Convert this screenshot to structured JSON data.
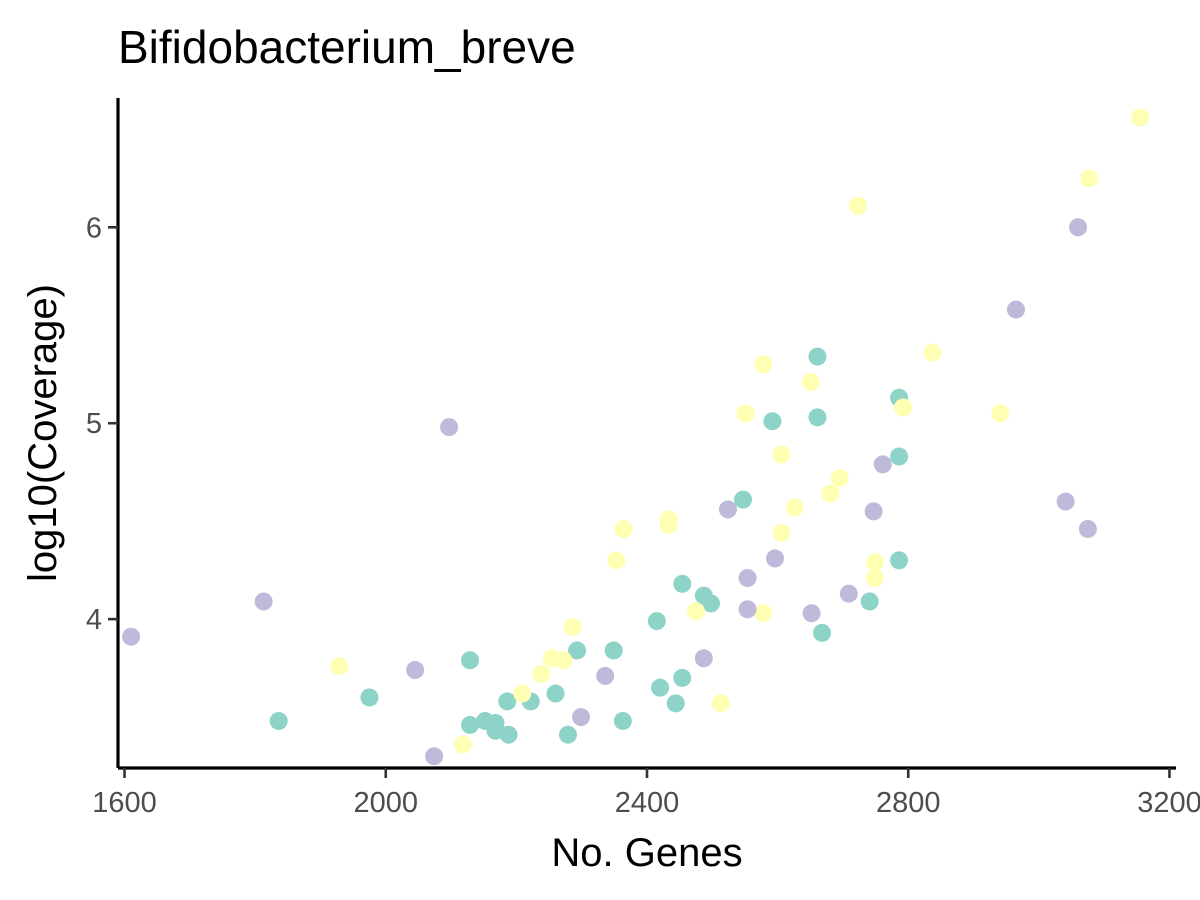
{
  "chart_data": {
    "type": "scatter",
    "title": "Bifidobacterium_breve",
    "xlabel": "No. Genes",
    "ylabel": "log10(Coverage)",
    "xlim": [
      1590,
      3210
    ],
    "ylim": [
      3.24,
      6.66
    ],
    "x_ticks": [
      1600,
      2000,
      2400,
      2800,
      3200
    ],
    "y_ticks": [
      4,
      5,
      6
    ],
    "grid": false,
    "legend": "none",
    "colors": {
      "teal": "#8dd3c7",
      "yellow": "#ffffb3",
      "purple": "#bebada"
    },
    "series": [
      {
        "color": "#8dd3c7",
        "points": [
          [
            1836,
            3.48
          ],
          [
            1975,
            3.6
          ],
          [
            2129,
            3.46
          ],
          [
            2129,
            3.79
          ],
          [
            2152,
            3.48
          ],
          [
            2168,
            3.43
          ],
          [
            2168,
            3.47
          ],
          [
            2186,
            3.58
          ],
          [
            2188,
            3.41
          ],
          [
            2222,
            3.58
          ],
          [
            2260,
            3.62
          ],
          [
            2279,
            3.41
          ],
          [
            2293,
            3.84
          ],
          [
            2349,
            3.84
          ],
          [
            2363,
            3.48
          ],
          [
            2415,
            3.99
          ],
          [
            2420,
            3.65
          ],
          [
            2444,
            3.57
          ],
          [
            2454,
            3.7
          ],
          [
            2454,
            4.18
          ],
          [
            2487,
            4.12
          ],
          [
            2498,
            4.08
          ],
          [
            2547,
            4.61
          ],
          [
            2592,
            5.01
          ],
          [
            2661,
            5.34
          ],
          [
            2661,
            5.03
          ],
          [
            2668,
            3.93
          ],
          [
            2741,
            4.09
          ],
          [
            2786,
            5.13
          ],
          [
            2786,
            4.83
          ],
          [
            2786,
            4.3
          ]
        ]
      },
      {
        "color": "#ffffb3",
        "points": [
          [
            1929,
            3.76
          ],
          [
            2118,
            3.36
          ],
          [
            2209,
            3.62
          ],
          [
            2238,
            3.72
          ],
          [
            2254,
            3.8
          ],
          [
            2272,
            3.79
          ],
          [
            2286,
            3.96
          ],
          [
            2353,
            4.3
          ],
          [
            2364,
            4.46
          ],
          [
            2433,
            4.51
          ],
          [
            2433,
            4.48
          ],
          [
            2475,
            4.04
          ],
          [
            2513,
            3.57
          ],
          [
            2551,
            5.05
          ],
          [
            2578,
            4.03
          ],
          [
            2578,
            5.3
          ],
          [
            2606,
            4.84
          ],
          [
            2606,
            4.44
          ],
          [
            2626,
            4.57
          ],
          [
            2651,
            5.21
          ],
          [
            2681,
            4.64
          ],
          [
            2695,
            4.72
          ],
          [
            2723,
            6.11
          ],
          [
            2749,
            4.29
          ],
          [
            2749,
            4.21
          ],
          [
            2792,
            5.08
          ],
          [
            2837,
            5.36
          ],
          [
            2941,
            5.05
          ],
          [
            3077,
            6.25
          ],
          [
            3155,
            6.56
          ]
        ]
      },
      {
        "color": "#bebada",
        "points": [
          [
            1610,
            3.91
          ],
          [
            1813,
            4.09
          ],
          [
            2045,
            3.74
          ],
          [
            2074,
            3.3
          ],
          [
            2097,
            4.98
          ],
          [
            2299,
            3.5
          ],
          [
            2336,
            3.71
          ],
          [
            2487,
            3.8
          ],
          [
            2524,
            4.56
          ],
          [
            2554,
            4.05
          ],
          [
            2554,
            4.21
          ],
          [
            2596,
            4.31
          ],
          [
            2652,
            4.03
          ],
          [
            2709,
            4.13
          ],
          [
            2747,
            4.55
          ],
          [
            2761,
            4.79
          ],
          [
            2965,
            5.58
          ],
          [
            3041,
            4.6
          ],
          [
            3060,
            6.0
          ],
          [
            3075,
            4.46
          ]
        ]
      }
    ]
  }
}
